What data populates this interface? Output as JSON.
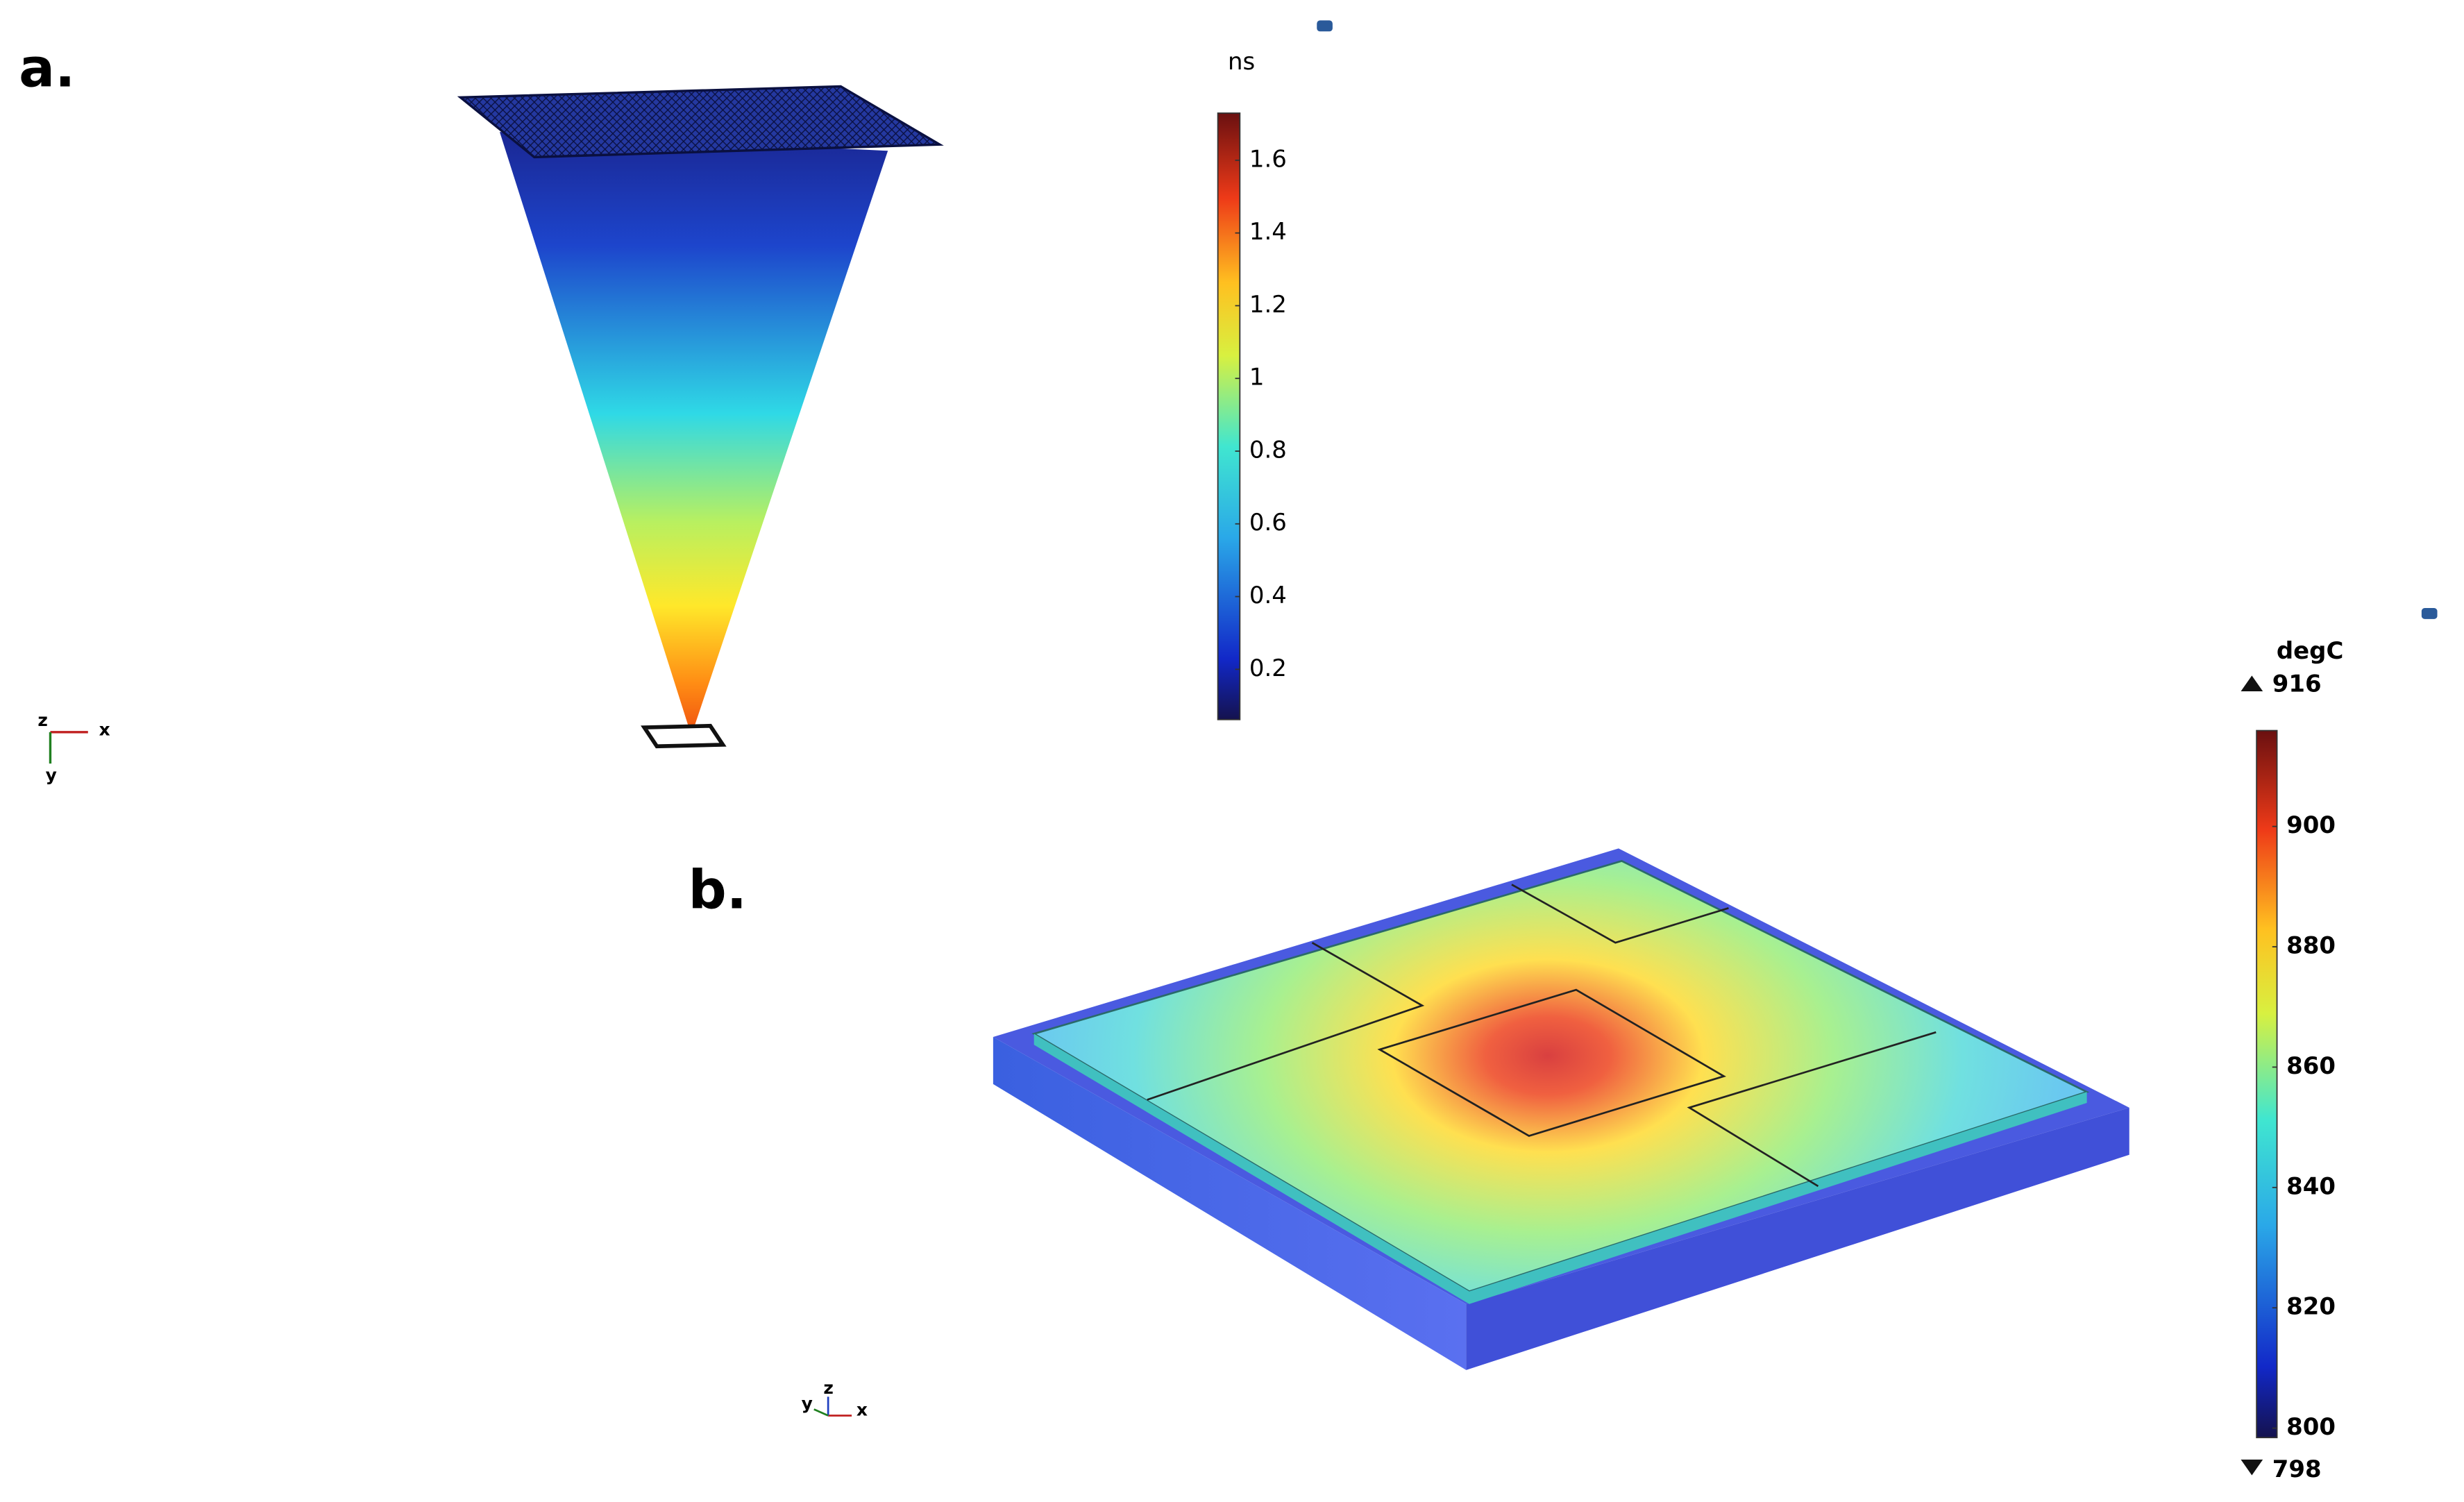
{
  "panels": [
    {
      "label": "a.",
      "unit": "ns",
      "colorbar_ticks": [
        1.6,
        1.4,
        1.2,
        1,
        0.8,
        0.6,
        0.4,
        0.2
      ],
      "axes": [
        "z",
        "x",
        "y"
      ]
    },
    {
      "label": "b.",
      "unit": "degC",
      "max": 916,
      "min": 798,
      "colorbar_ticks": [
        900,
        880,
        860,
        840,
        820,
        800
      ],
      "axes": [
        "y",
        "z",
        "x"
      ]
    }
  ]
}
